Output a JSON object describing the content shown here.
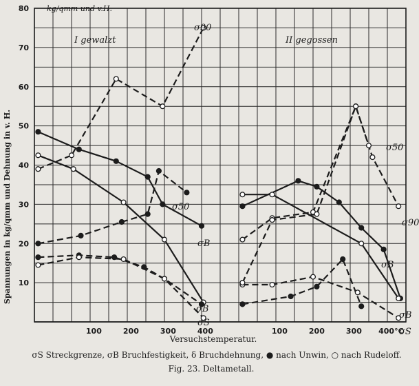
{
  "chart_data": {
    "type": "line",
    "y_unit_label": "kg/qmm und v.H.",
    "ylabel": "Spannungen in kg/qmm und Dehnung in v. H.",
    "xlabel": "Versuchstemperatur.",
    "ylim": [
      0,
      80
    ],
    "y_ticks": [
      "10",
      "20",
      "30",
      "40",
      "50",
      "60",
      "70",
      "80"
    ],
    "grid": true,
    "panels": [
      {
        "label": "I gewalzt",
        "xlim": [
          -60,
          440
        ],
        "x_ticks": [
          "100",
          "200",
          "300",
          "400"
        ],
        "series": [
          {
            "name": "σB",
            "style": "solid",
            "marker": "filled",
            "x": [
              -50,
              60,
              160,
              245,
              285,
              390
            ],
            "y": [
              48.5,
              44,
              41,
              37,
              30,
              24.5
            ]
          },
          {
            "name": "σB",
            "style": "solid",
            "marker": "open",
            "x": [
              -50,
              45,
              180,
              290,
              395
            ],
            "y": [
              42.5,
              39,
              30.5,
              21,
              5
            ]
          },
          {
            "name": "σS",
            "style": "dashed",
            "marker": "filled",
            "x": [
              -50,
              60,
              155,
              235,
              290,
              390
            ],
            "y": [
              16.5,
              17,
              16.5,
              14,
              11,
              4.5
            ]
          },
          {
            "name": "σS",
            "style": "dashed",
            "marker": "open",
            "x": [
              -50,
              60,
              180,
              290,
              395
            ],
            "y": [
              14.5,
              16.5,
              16,
              11,
              1
            ]
          },
          {
            "name": "δ90",
            "style": "dashed",
            "marker": "open",
            "x": [
              -50,
              40,
              160,
              285,
              395
            ],
            "y": [
              39,
              42.5,
              62,
              55,
              75
            ]
          },
          {
            "name": "δ50",
            "style": "dashed",
            "marker": "filled",
            "x": [
              -50,
              65,
              175,
              245,
              275,
              350
            ],
            "y": [
              20,
              22,
              25.5,
              27.5,
              38.5,
              33
            ]
          }
        ],
        "annotations": [
          "σ90",
          "σ50",
          "σB",
          "σB",
          "σS"
        ]
      },
      {
        "label": "II gegossen",
        "xlim": [
          -60,
          440
        ],
        "x_ticks": [
          "100",
          "200",
          "300",
          "400°C"
        ],
        "series": [
          {
            "name": "σB",
            "style": "solid",
            "marker": "filled",
            "x": [
              0,
              150,
              200,
              260,
              320,
              380,
              425
            ],
            "y": [
              29.5,
              36,
              34.5,
              30.5,
              24,
              18.5,
              6
            ]
          },
          {
            "name": "σB",
            "style": "solid",
            "marker": "open",
            "x": [
              0,
              80,
              320,
              420
            ],
            "y": [
              32.5,
              32.5,
              20,
              6
            ]
          },
          {
            "name": "σS",
            "style": "dashed",
            "marker": "filled",
            "x": [
              0,
              130,
              200,
              270,
              320
            ],
            "y": [
              4.5,
              6.5,
              9,
              16,
              4
            ]
          },
          {
            "name": "σS",
            "style": "dashed",
            "marker": "open",
            "x": [
              0,
              80,
              190,
              310,
              420
            ],
            "y": [
              9.5,
              9.5,
              11.5,
              7.5,
              1
            ]
          },
          {
            "name": "δ90",
            "style": "dashed",
            "marker": "open",
            "x": [
              0,
              80,
              190,
              305,
              350,
              420
            ],
            "y": [
              21,
              26.5,
              28,
              55,
              42,
              29.5
            ]
          },
          {
            "name": "δ50",
            "style": "dashed",
            "marker": "open",
            "x": [
              0,
              80,
              200,
              305,
              340
            ],
            "y": [
              10,
              26,
              27.5,
              55,
              45
            ]
          }
        ],
        "annotations": [
          "σ50",
          "σ90",
          "σB",
          "σB",
          "σS"
        ]
      }
    ]
  },
  "caption": {
    "legend_line": "σS Streckgrenze, σB Bruchfestigkeit, δ Bruchdehnung, ● nach Unwin, ○ nach Rudeloff.",
    "figure_line": "Fig. 23. Deltametall."
  },
  "colors": {
    "ink": "#1c1c1c",
    "paper": "#e9e7e2"
  }
}
